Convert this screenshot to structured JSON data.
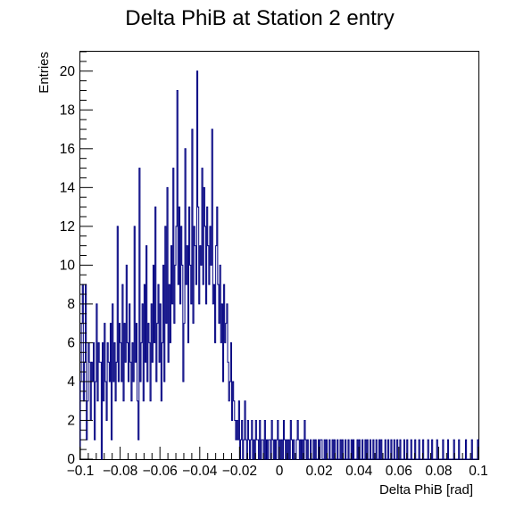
{
  "chart_data": {
    "type": "histogram",
    "title": "Delta PhiB at Station 2 entry",
    "xlabel": "Delta PhiB [rad]",
    "ylabel": "Entries",
    "xlim": [
      -0.1,
      0.1
    ],
    "ylim": [
      0,
      21
    ],
    "grid": false,
    "legend": "none",
    "line_color": "#000080",
    "x_ticks": [
      {
        "value": -0.1,
        "label": "−0.1"
      },
      {
        "value": -0.08,
        "label": "−0.08"
      },
      {
        "value": -0.06,
        "label": "−0.06"
      },
      {
        "value": -0.04,
        "label": "−0.04"
      },
      {
        "value": -0.02,
        "label": "−0.02"
      },
      {
        "value": 0,
        "label": "0"
      },
      {
        "value": 0.02,
        "label": "0.02"
      },
      {
        "value": 0.04,
        "label": "0.04"
      },
      {
        "value": 0.06,
        "label": "0.06"
      },
      {
        "value": 0.08,
        "label": "0.08"
      },
      {
        "value": 0.1,
        "label": "0.1"
      }
    ],
    "y_ticks": [
      {
        "value": 0,
        "label": "0"
      },
      {
        "value": 2,
        "label": "2"
      },
      {
        "value": 4,
        "label": "4"
      },
      {
        "value": 6,
        "label": "6"
      },
      {
        "value": 8,
        "label": "8"
      },
      {
        "value": 10,
        "label": "10"
      },
      {
        "value": 12,
        "label": "12"
      },
      {
        "value": 14,
        "label": "14"
      },
      {
        "value": 16,
        "label": "16"
      },
      {
        "value": 18,
        "label": "18"
      },
      {
        "value": 20,
        "label": "20"
      }
    ],
    "bins": {
      "start": -0.1,
      "width": 0.0005,
      "counts": [
        4,
        7,
        9,
        3,
        5,
        9,
        1,
        3,
        6,
        5,
        2,
        5,
        4,
        6,
        1,
        4,
        8,
        3,
        6,
        5,
        5,
        0,
        6,
        3,
        7,
        4,
        2,
        6,
        5,
        4,
        7,
        1,
        8,
        4,
        6,
        3,
        5,
        12,
        4,
        7,
        6,
        4,
        9,
        3,
        7,
        5,
        10,
        6,
        4,
        8,
        5,
        3,
        6,
        4,
        12,
        5,
        7,
        3,
        1,
        15,
        4,
        6,
        8,
        3,
        9,
        5,
        11,
        4,
        7,
        6,
        3,
        8,
        5,
        10,
        6,
        13,
        4,
        7,
        9,
        5,
        8,
        3,
        6,
        10,
        4,
        12,
        7,
        14,
        5,
        9,
        6,
        11,
        8,
        15,
        7,
        10,
        12,
        19,
        9,
        13,
        8,
        12,
        10,
        4,
        7,
        16,
        9,
        11,
        6,
        13,
        10,
        8,
        17,
        7,
        12,
        11,
        9,
        20,
        13,
        8,
        11,
        10,
        15,
        9,
        14,
        12,
        8,
        13,
        11,
        9,
        12,
        10,
        17,
        8,
        9,
        6,
        11,
        13,
        9,
        7,
        10,
        6,
        8,
        4,
        9,
        6,
        7,
        8,
        5,
        3,
        4,
        6,
        2,
        4,
        3,
        2,
        1,
        2,
        1,
        3,
        0,
        1,
        2,
        0,
        1,
        3,
        1,
        0,
        2,
        1,
        0,
        1,
        2,
        0,
        1,
        0,
        2,
        1,
        1,
        0,
        2,
        0,
        1,
        1,
        0,
        2,
        0,
        1,
        0,
        1,
        1,
        0,
        2,
        1,
        0,
        1,
        0,
        1,
        2,
        0,
        1,
        0,
        1,
        0,
        2,
        1,
        0,
        1,
        0,
        1,
        0,
        2,
        1,
        0,
        1,
        0,
        0,
        1,
        2,
        1,
        0,
        1,
        0,
        1,
        0,
        2,
        1,
        0,
        1,
        0,
        0,
        1,
        0,
        0,
        1,
        0,
        1,
        0,
        0,
        1,
        0,
        1,
        1,
        0,
        0,
        1,
        0,
        1,
        0,
        0,
        1,
        0,
        0,
        1,
        0,
        1,
        0,
        0,
        1,
        0,
        0,
        1,
        0,
        1,
        0,
        0,
        1,
        0,
        0,
        1,
        0,
        0,
        1,
        0,
        1,
        0,
        0,
        0,
        1,
        0,
        1,
        0,
        0,
        1,
        0,
        0,
        1,
        0,
        1,
        0,
        0,
        1,
        0,
        0,
        1,
        0,
        0,
        1,
        0,
        0,
        1,
        0,
        1,
        0,
        0,
        0,
        1,
        0,
        0,
        1,
        0,
        0,
        1,
        0,
        0,
        1,
        0,
        0,
        1,
        0,
        0,
        1,
        0,
        0,
        0,
        1,
        0,
        0,
        1,
        0,
        0,
        0,
        1,
        0,
        0,
        0,
        1,
        0,
        0,
        0,
        1,
        0,
        0,
        0,
        1,
        0,
        0,
        0,
        0,
        1,
        0,
        0,
        0,
        1,
        0,
        0,
        0,
        0,
        1,
        0,
        0,
        0,
        0,
        0,
        1,
        0,
        0,
        0,
        0,
        1,
        0,
        0,
        0,
        0,
        0,
        1,
        0,
        0,
        0,
        0,
        1,
        0,
        0,
        0,
        0,
        0,
        0,
        1,
        0,
        0,
        0,
        0,
        0,
        1,
        0,
        0,
        0,
        0,
        0,
        1
      ]
    }
  }
}
